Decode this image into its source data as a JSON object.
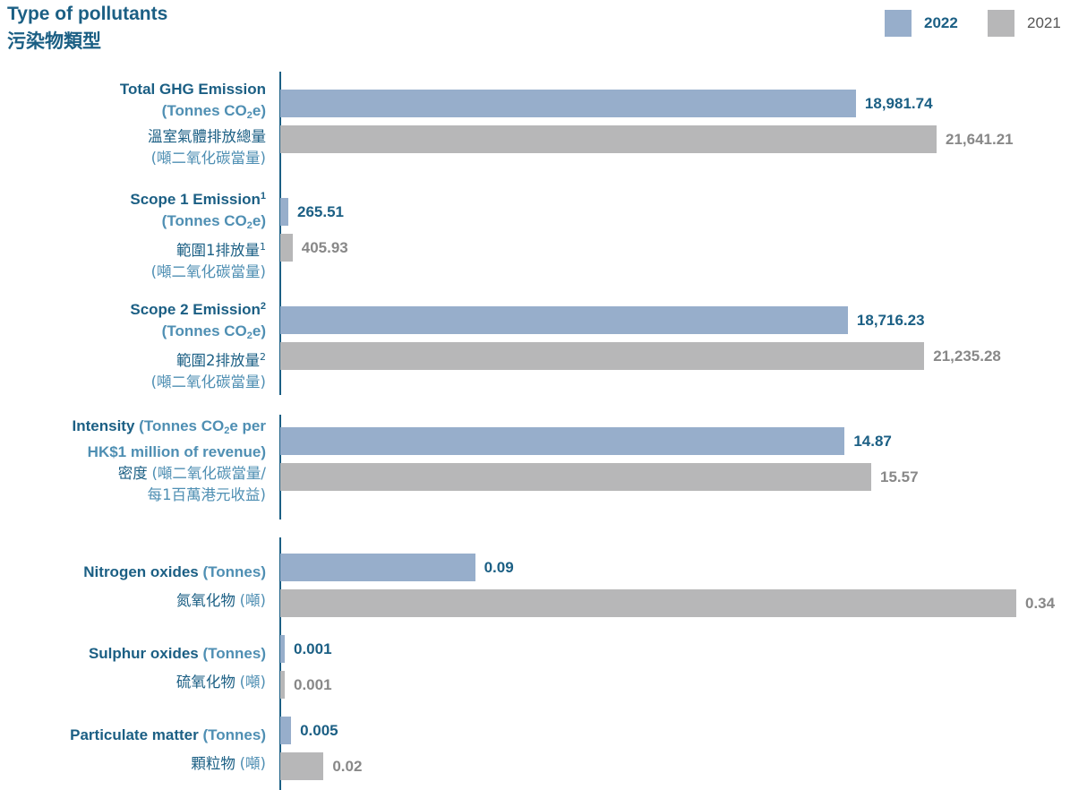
{
  "title": {
    "en": "Type of pollutants",
    "zh": "污染物類型"
  },
  "legend": [
    {
      "label": "2022",
      "color": "#97aecb",
      "text_color": "#1b5f84"
    },
    {
      "label": "2021",
      "color": "#b7b7b8",
      "text_color": "#555555"
    }
  ],
  "chart_data": {
    "type": "bar",
    "orientation": "horizontal",
    "title": "Type of pollutants 污染物類型",
    "series_names": [
      "2022",
      "2021"
    ],
    "groups": [
      {
        "categories": [
          {
            "label_en": "Total GHG Emission",
            "label_en_unit": "(Tonnes CO2e)",
            "label_zh": "溫室氣體排放總量",
            "label_zh_unit": "(噸二氧化碳當量)",
            "display": [
              "18,981.74",
              "21,641.21"
            ],
            "values": [
              18981.74,
              21641.21
            ]
          },
          {
            "label_en": "Scope 1 Emission¹",
            "label_en_unit": "(Tonnes CO2e)",
            "label_zh": "範圍1排放量¹",
            "label_zh_unit": "(噸二氧化碳當量)",
            "display": [
              "265.51",
              "405.93"
            ],
            "values": [
              265.51,
              405.93
            ]
          },
          {
            "label_en": "Scope 2 Emission²",
            "label_en_unit": "(Tonnes CO2e)",
            "label_zh": "範圍2排放量²",
            "label_zh_unit": "(噸二氧化碳當量)",
            "display": [
              "18,716.23",
              "21,235.28"
            ],
            "values": [
              18716.23,
              21235.28
            ]
          }
        ]
      },
      {
        "categories": [
          {
            "label_en": "Intensity",
            "label_en_unit": "(Tonnes CO2e per HK$1 million of revenue)",
            "label_zh": "密度",
            "label_zh_unit": "(噸二氧化碳當量/每1百萬港元收益)",
            "display": [
              "14.87",
              "15.57"
            ],
            "values": [
              14.87,
              15.57
            ]
          }
        ]
      },
      {
        "categories": [
          {
            "label_en": "Nitrogen oxides",
            "label_en_unit": "(Tonnes)",
            "label_zh": "氮氧化物",
            "label_zh_unit": "(噸)",
            "display": [
              "0.09",
              "0.34"
            ],
            "values": [
              0.09,
              0.34
            ]
          },
          {
            "label_en": "Sulphur oxides",
            "label_en_unit": "(Tonnes)",
            "label_zh": "硫氧化物",
            "label_zh_unit": "(噸)",
            "display": [
              "0.001",
              "0.001"
            ],
            "values": [
              0.001,
              0.001
            ]
          },
          {
            "label_en": "Particulate matter",
            "label_en_unit": "(Tonnes)",
            "label_zh": "顆粒物",
            "label_zh_unit": "(噸)",
            "display": [
              "0.005",
              "0.02"
            ],
            "values": [
              0.005,
              0.02
            ]
          }
        ]
      }
    ]
  }
}
